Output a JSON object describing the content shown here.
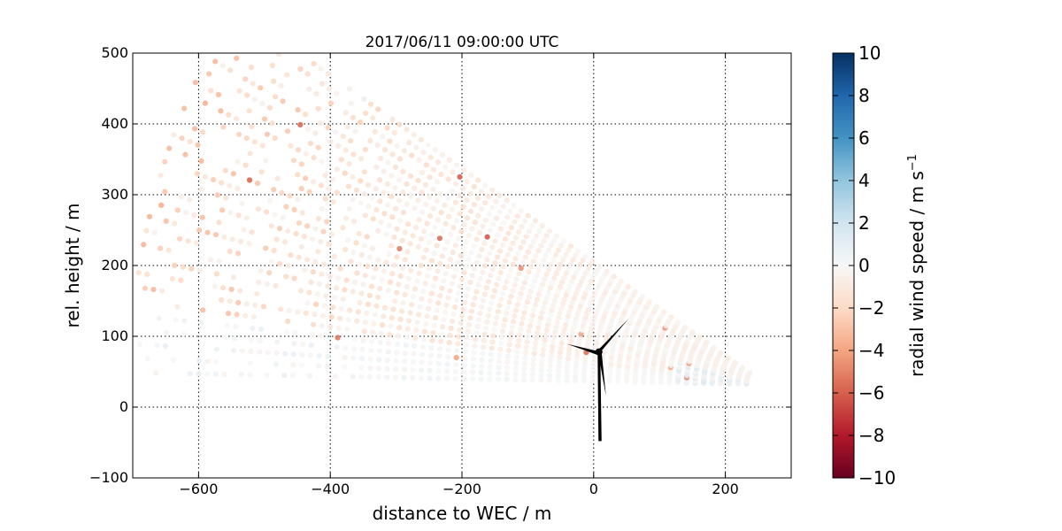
{
  "chart_data": {
    "type": "scatter",
    "title": "2017/06/11 09:00:00 UTC",
    "xlabel": "distance to WEC / m",
    "ylabel": "rel. height / m",
    "xlim": [
      -700,
      300
    ],
    "ylim": [
      -100,
      500
    ],
    "x_ticks": [
      -600,
      -400,
      -200,
      0,
      200
    ],
    "x_tick_labels": [
      "−600",
      "−400",
      "−200",
      "0",
      "200"
    ],
    "y_ticks": [
      -100,
      0,
      100,
      200,
      300,
      400,
      500
    ],
    "y_tick_labels": [
      "−100",
      "0",
      "100",
      "200",
      "300",
      "400",
      "500"
    ],
    "grid": true,
    "grid_style": "dotted",
    "colorbar": {
      "label_main": "radial wind speed / m s",
      "label_exp": "−1",
      "range": [
        -10,
        10
      ],
      "ticks": [
        10,
        8,
        6,
        4,
        2,
        0,
        -2,
        -4,
        -6,
        -8,
        -10
      ],
      "tick_labels": [
        "10",
        "8",
        "6",
        "4",
        "2",
        "0",
        "−2",
        "−4",
        "−6",
        "−8",
        "−10"
      ],
      "colormap": "RdBu",
      "stops": [
        "#67001f",
        "#b2182b",
        "#d6604d",
        "#f4a582",
        "#fddbc7",
        "#f7f7f7",
        "#d1e5f0",
        "#92c5de",
        "#4393c3",
        "#2166ac",
        "#053061"
      ]
    },
    "scan": {
      "origin_x": 262,
      "origin_y": 32,
      "angle_min_deg": 1.0,
      "angle_max_deg": 33.5,
      "angle_step_deg": 1.2,
      "range_min_m": 30,
      "range_max_m": 970,
      "range_step_m": 13,
      "typical_speed": -1.0
    },
    "turbine": {
      "hub_x": 8,
      "hub_y": 78,
      "tower_base_y": -48,
      "color": "#000000"
    }
  }
}
